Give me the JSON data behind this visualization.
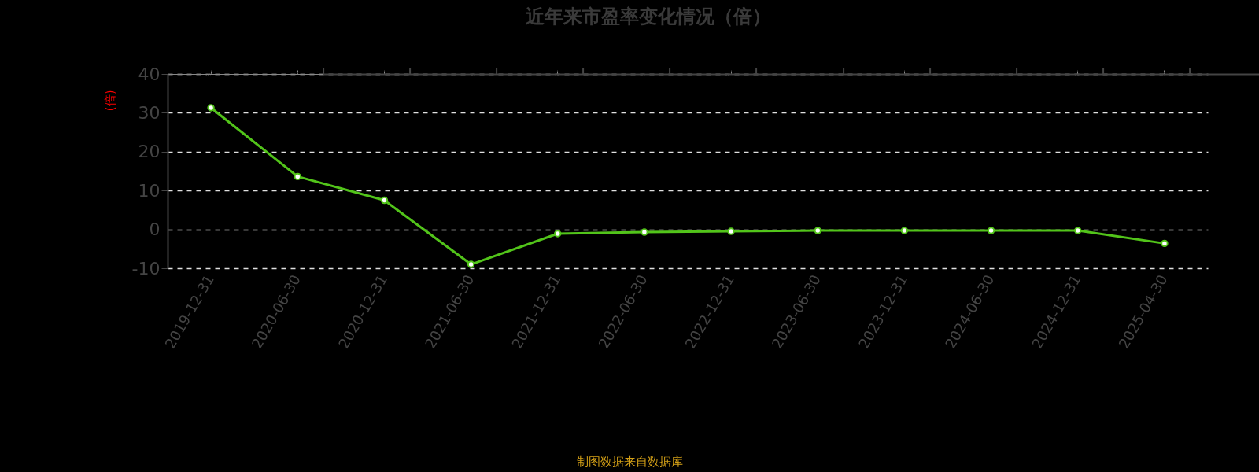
{
  "chart_data": {
    "type": "line",
    "title": "近年来市盈率变化情况（倍）",
    "ylabel": "(倍)",
    "categories": [
      "2019-12-31",
      "2020-06-30",
      "2020-12-31",
      "2021-06-30",
      "2021-12-31",
      "2022-06-30",
      "2022-12-31",
      "2023-06-30",
      "2023-12-31",
      "2024-06-30",
      "2024-12-31",
      "2025-04-30"
    ],
    "series": [
      {
        "color": "#52c41a",
        "values": [
          31.3,
          13.6,
          7.5,
          -9.0,
          -1.1,
          -0.7,
          -0.5,
          -0.3,
          -0.3,
          -0.3,
          -0.3,
          -3.6
        ]
      }
    ],
    "ylim": [
      -10,
      40
    ],
    "yticks": [
      -10,
      0,
      10,
      20,
      30,
      40
    ],
    "grid": "y",
    "marker": "circle",
    "line_style": "solid",
    "annotations": [
      "制图数据来自数据库"
    ]
  }
}
